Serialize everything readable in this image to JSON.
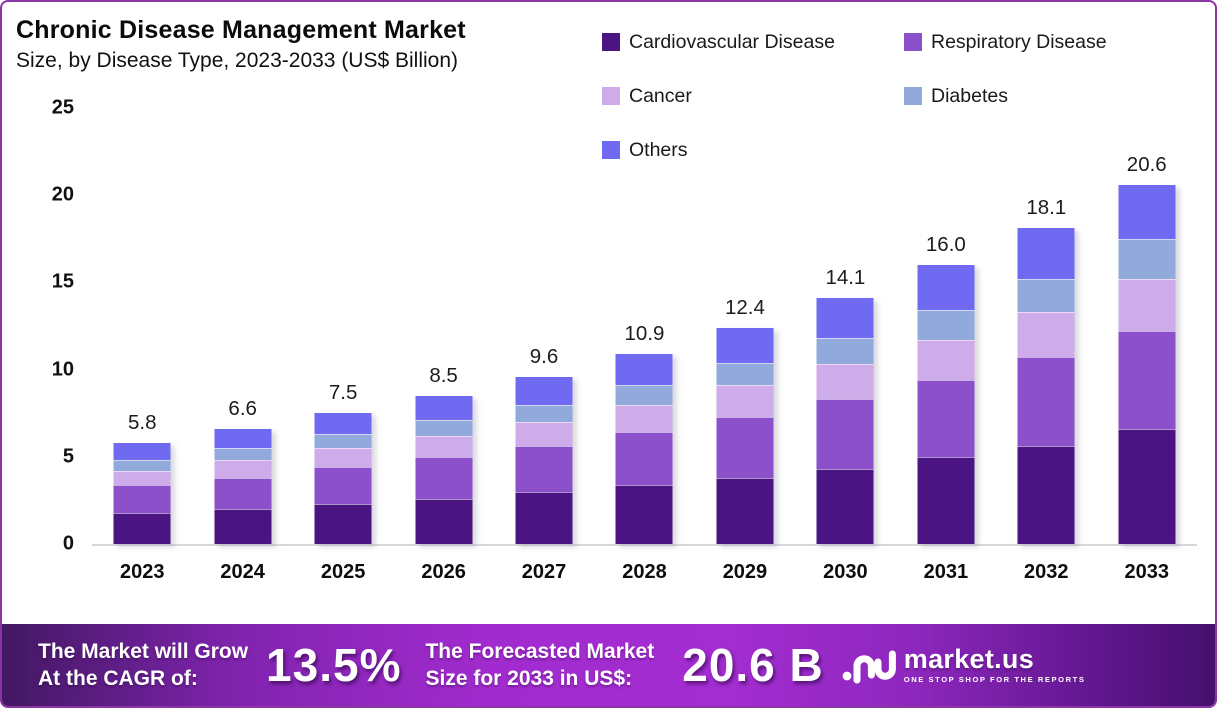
{
  "header": {
    "title": "Chronic Disease Management Market",
    "subtitle": "Size, by Disease Type, 2023-2033 (US$ Billion)"
  },
  "chart_data": {
    "type": "bar",
    "stacked": true,
    "title": "Chronic Disease Management Market Size, by Disease Type, 2023-2033 (US$ Billion)",
    "categories": [
      "2023",
      "2024",
      "2025",
      "2026",
      "2027",
      "2028",
      "2029",
      "2030",
      "2031",
      "2032",
      "2033"
    ],
    "totals": [
      5.8,
      6.6,
      7.5,
      8.5,
      9.6,
      10.9,
      12.4,
      14.1,
      16.0,
      18.1,
      20.6
    ],
    "total_labels": [
      "5.8",
      "6.6",
      "7.5",
      "8.5",
      "9.6",
      "10.9",
      "12.4",
      "14.1",
      "16.0",
      "18.1",
      "20.6"
    ],
    "series": [
      {
        "name": "Cardiovascular Disease",
        "color": "#4A1483",
        "values": [
          1.8,
          2.0,
          2.3,
          2.6,
          3.0,
          3.4,
          3.8,
          4.3,
          5.0,
          5.6,
          6.6
        ]
      },
      {
        "name": "Respiratory Disease",
        "color": "#8C50CB",
        "values": [
          1.6,
          1.8,
          2.1,
          2.4,
          2.6,
          3.0,
          3.5,
          4.0,
          4.4,
          5.1,
          5.6
        ]
      },
      {
        "name": "Cancer",
        "color": "#CEABE9",
        "values": [
          0.8,
          1.0,
          1.1,
          1.2,
          1.4,
          1.6,
          1.8,
          2.0,
          2.3,
          2.6,
          3.0
        ]
      },
      {
        "name": "Diabetes",
        "color": "#92A9DB",
        "values": [
          0.6,
          0.7,
          0.8,
          0.9,
          1.0,
          1.1,
          1.3,
          1.5,
          1.7,
          1.9,
          2.3
        ]
      },
      {
        "name": "Others",
        "color": "#7069F1",
        "values": [
          1.0,
          1.1,
          1.2,
          1.4,
          1.6,
          1.8,
          2.0,
          2.3,
          2.6,
          2.9,
          3.1
        ]
      }
    ],
    "legend_display_order": [
      0,
      2,
      4,
      1,
      3
    ],
    "legend_position": "top-right",
    "xlabel": "",
    "ylabel": "",
    "ylim": [
      0,
      25
    ],
    "yticks": [
      0,
      5,
      10,
      15,
      20,
      25
    ],
    "grid": false
  },
  "banner": {
    "grow_line1": "The Market will Grow",
    "grow_line2": "At the CAGR of:",
    "cagr_value": "13.5%",
    "forecast_line1": "The Forecasted Market",
    "forecast_line2": "Size for 2033 in US$:",
    "forecast_value": "20.6 B",
    "logo_name": "market.us",
    "logo_tagline": "ONE STOP SHOP FOR THE REPORTS"
  },
  "colors": {
    "frame_border": "#8A35A3",
    "baseline": "#D8D8DC",
    "banner_bright": "#A12BCE",
    "banner_dark": "#45106E",
    "text": "#111111"
  }
}
